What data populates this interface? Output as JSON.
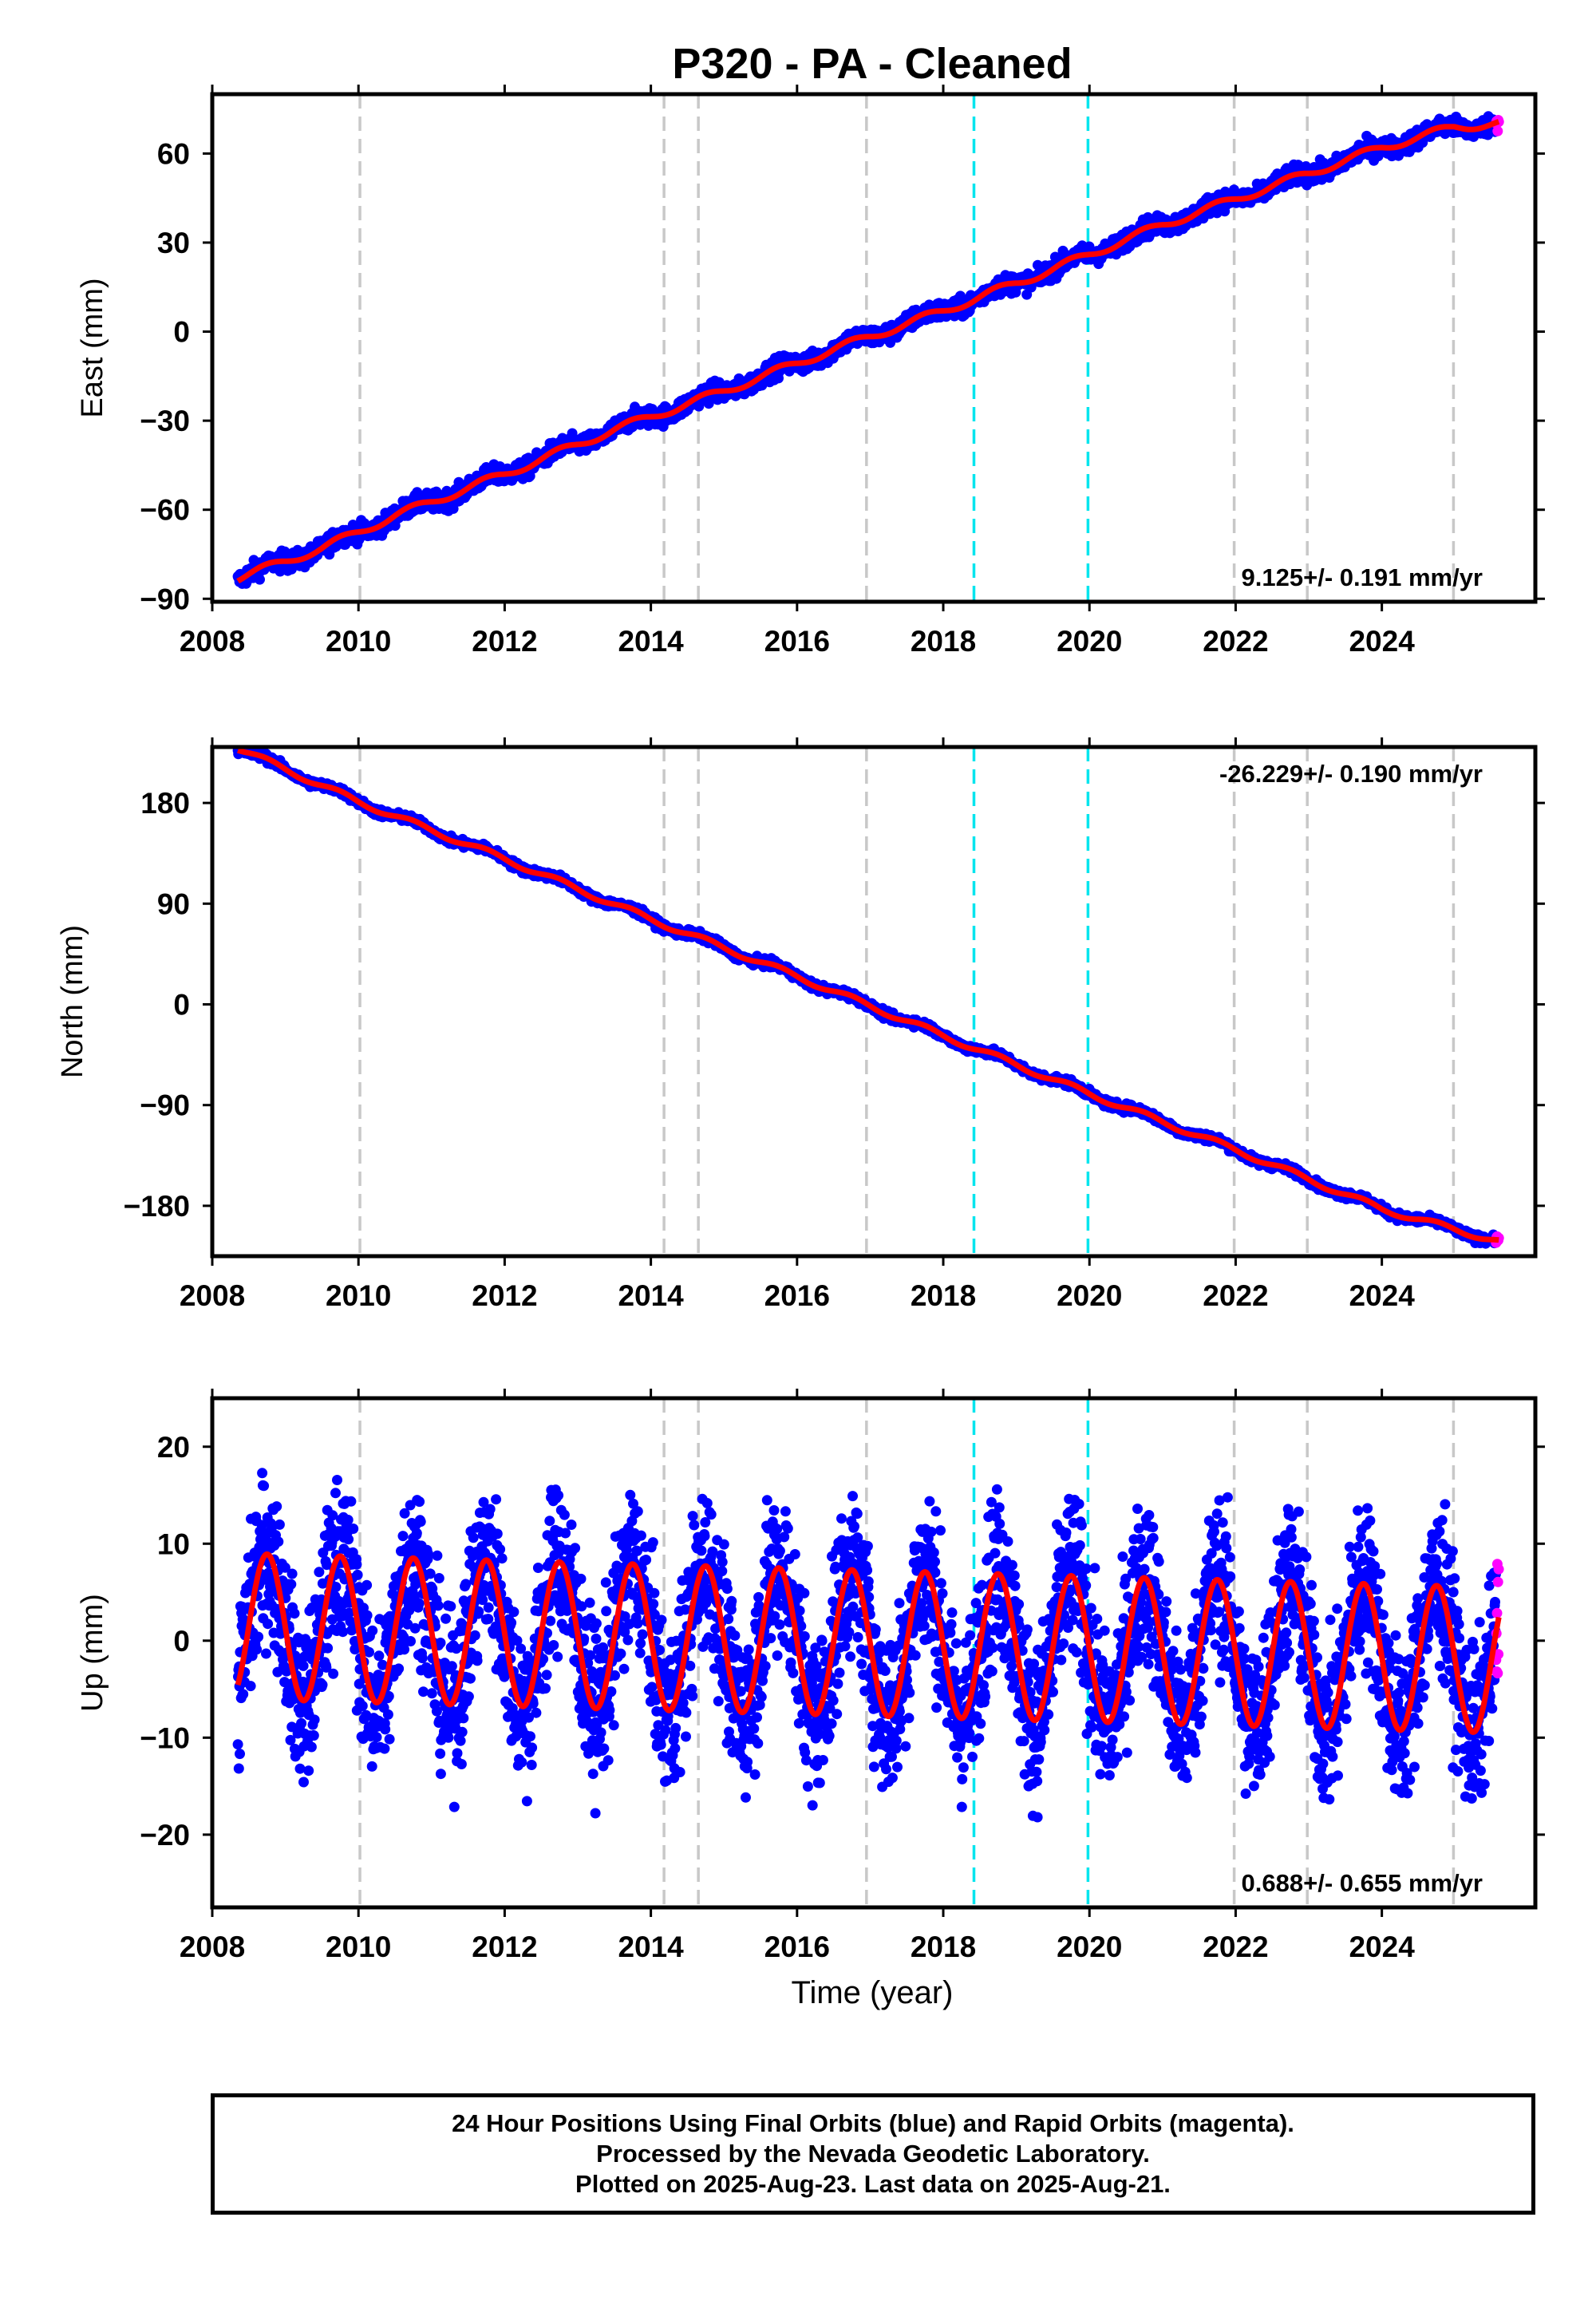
{
  "title": "P320  - PA - Cleaned",
  "xlabel": "Time (year)",
  "footer": {
    "line1": "24 Hour Positions Using Final Orbits (blue) and Rapid Orbits (magenta).",
    "line2": "Processed by the Nevada Geodetic Laboratory.",
    "line3": "Plotted on 2025-Aug-23. Last data on 2025-Aug-21."
  },
  "colors": {
    "final_orbit_points": "#0000ff",
    "rapid_orbit_points": "#ff00ff",
    "model_fit": "#ff0000",
    "equipment_change_line": "#c8c8c8",
    "earthquake_line": "#00e5ee"
  },
  "chart_data": [
    {
      "type": "scatter",
      "component": "East",
      "ylabel": "East (mm)",
      "rate_label": "9.125+/- 0.191 mm/yr",
      "rate_mm_per_yr": 9.125,
      "rate_sigma": 0.191,
      "xlim": [
        2008.0,
        2026.1
      ],
      "ylim": [
        -91,
        80
      ],
      "xticks": [
        2008,
        2010,
        2012,
        2014,
        2016,
        2018,
        2020,
        2022,
        2024
      ],
      "yticks": [
        -90,
        -60,
        -30,
        0,
        30,
        60
      ],
      "ytick_labels": [
        "−90",
        "−60",
        "−30",
        "0",
        "30",
        "60"
      ],
      "series": [
        {
          "x": [
            2008.35,
            2009.5,
            2010.5,
            2012.0,
            2013.5,
            2015.0,
            2016.5,
            2018.0,
            2019.5,
            2021.0,
            2022.5,
            2024.0,
            2025.0,
            2025.6
          ],
          "y": [
            -83,
            -73,
            -62,
            -48,
            -33,
            -20,
            -6,
            7,
            21,
            36,
            49,
            62,
            69,
            70
          ]
        }
      ],
      "rapid_x": [
        2024.95,
        2025.62
      ],
      "amp_mm": 1.3,
      "noise_mm": 1.6
    },
    {
      "type": "scatter",
      "component": "North",
      "ylabel": "North (mm)",
      "rate_label": "-26.229+/- 0.190 mm/yr",
      "rate_mm_per_yr": -26.229,
      "rate_sigma": 0.19,
      "xlim": [
        2008.0,
        2026.1
      ],
      "ylim": [
        -225,
        230
      ],
      "xticks": [
        2008,
        2010,
        2012,
        2014,
        2016,
        2018,
        2020,
        2022,
        2024
      ],
      "yticks": [
        -180,
        -90,
        0,
        90,
        180
      ],
      "ytick_labels": [
        "−180",
        "−90",
        "0",
        "90",
        "180"
      ],
      "series": [
        {
          "x": [
            2008.35,
            2010.0,
            2012.0,
            2014.0,
            2016.0,
            2018.0,
            2020.0,
            2022.0,
            2024.0,
            2025.6
          ],
          "y": [
            229,
            181,
            130,
            76,
            25,
            -28,
            -80,
            -130,
            -183,
            -212
          ]
        }
      ],
      "rapid_x": [
        2024.95,
        2025.62
      ],
      "amp_mm": 2.5,
      "noise_mm": 1.8
    },
    {
      "type": "scatter",
      "component": "Up",
      "ylabel": "Up (mm)",
      "rate_label": "0.688+/- 0.655 mm/yr",
      "rate_mm_per_yr": 0.688,
      "rate_sigma": 0.655,
      "xlim": [
        2008.0,
        2026.1
      ],
      "ylim": [
        -27.5,
        25
      ],
      "xticks": [
        2008,
        2010,
        2012,
        2014,
        2016,
        2018,
        2020,
        2022,
        2024
      ],
      "yticks": [
        -20,
        -10,
        0,
        10,
        20
      ],
      "ytick_labels": [
        "−20",
        "−10",
        "0",
        "10",
        "20"
      ],
      "series": [
        {
          "x": [
            2008.35,
            2025.6
          ],
          "y": [
            1.5,
            -2.0
          ]
        }
      ],
      "rapid_x": [
        2024.95,
        2025.62
      ],
      "amp_mm": 7.5,
      "noise_mm": 4.2
    }
  ],
  "event_lines": {
    "equipment_change_years": [
      2010.02,
      2014.18,
      2014.65,
      2016.95,
      2021.98,
      2022.98,
      2024.98
    ],
    "earthquake_years": [
      2018.42,
      2019.98
    ]
  }
}
